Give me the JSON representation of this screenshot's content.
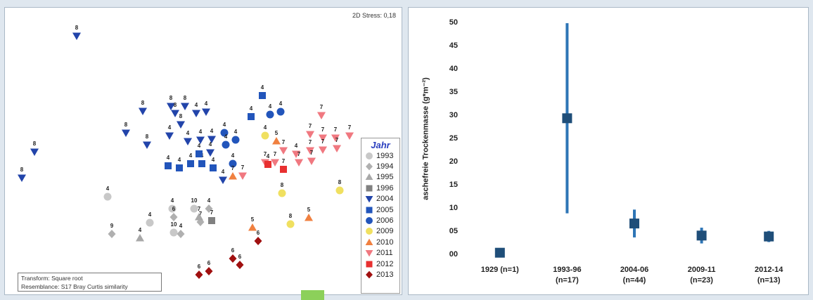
{
  "mds": {
    "stress_label": "2D Stress: 0,18",
    "transform_label": "Transform: Square root",
    "resemblance_label": "Resemblance: S17 Bray Curtis similarity",
    "legend_title": "Jahr",
    "legend": [
      {
        "year": "1993",
        "shape": "circle",
        "color": "#c8c8c8"
      },
      {
        "year": "1994",
        "shape": "diamond",
        "color": "#b0b0b0"
      },
      {
        "year": "1995",
        "shape": "triangle-up",
        "color": "#a8a8a8"
      },
      {
        "year": "1996",
        "shape": "square",
        "color": "#808080"
      },
      {
        "year": "2004",
        "shape": "triangle-down",
        "color": "#2244aa"
      },
      {
        "year": "2005",
        "shape": "square",
        "color": "#2255bb"
      },
      {
        "year": "2006",
        "shape": "circle",
        "color": "#2255bb"
      },
      {
        "year": "2009",
        "shape": "circle",
        "color": "#f0e060"
      },
      {
        "year": "2010",
        "shape": "triangle-up",
        "color": "#f08040"
      },
      {
        "year": "2011",
        "shape": "triangle-down",
        "color": "#f07880"
      },
      {
        "year": "2012",
        "shape": "square",
        "color": "#e83030"
      },
      {
        "year": "2013",
        "shape": "diamond",
        "color": "#a01010"
      }
    ],
    "points": [
      {
        "year": "2004",
        "x": 108,
        "y": 50,
        "label": "8"
      },
      {
        "year": "2004",
        "x": 48,
        "y": 215,
        "label": "8"
      },
      {
        "year": "2004",
        "x": 30,
        "y": 252,
        "label": "8"
      },
      {
        "year": "2004",
        "x": 178,
        "y": 188,
        "label": "8"
      },
      {
        "year": "2004",
        "x": 202,
        "y": 157,
        "label": "8"
      },
      {
        "year": "2004",
        "x": 208,
        "y": 205,
        "label": "8"
      },
      {
        "year": "2004",
        "x": 242,
        "y": 150,
        "label": "8"
      },
      {
        "year": "2004",
        "x": 248,
        "y": 160,
        "label": "8"
      },
      {
        "year": "2004",
        "x": 256,
        "y": 176,
        "label": "8"
      },
      {
        "year": "2004",
        "x": 262,
        "y": 150,
        "label": "8"
      },
      {
        "year": "2004",
        "x": 278,
        "y": 160,
        "label": "4"
      },
      {
        "year": "2004",
        "x": 292,
        "y": 158,
        "label": "4"
      },
      {
        "year": "2004",
        "x": 240,
        "y": 192,
        "label": "4"
      },
      {
        "year": "2004",
        "x": 266,
        "y": 200,
        "label": "4"
      },
      {
        "year": "2004",
        "x": 284,
        "y": 198,
        "label": "4"
      },
      {
        "year": "2004",
        "x": 300,
        "y": 197,
        "label": "4"
      },
      {
        "year": "2004",
        "x": 298,
        "y": 216,
        "label": "4"
      },
      {
        "year": "2004",
        "x": 316,
        "y": 255,
        "label": "4"
      },
      {
        "year": "2005",
        "x": 372,
        "y": 135,
        "label": "4"
      },
      {
        "year": "2005",
        "x": 356,
        "y": 165,
        "label": "4"
      },
      {
        "year": "2005",
        "x": 238,
        "y": 235,
        "label": "4"
      },
      {
        "year": "2005",
        "x": 254,
        "y": 238,
        "label": "4"
      },
      {
        "year": "2005",
        "x": 270,
        "y": 232,
        "label": "4"
      },
      {
        "year": "2005",
        "x": 286,
        "y": 232,
        "label": "4"
      },
      {
        "year": "2005",
        "x": 302,
        "y": 238,
        "label": "4"
      },
      {
        "year": "2005",
        "x": 282,
        "y": 218,
        "label": "4"
      },
      {
        "year": "2006",
        "x": 383,
        "y": 162,
        "label": "4"
      },
      {
        "year": "2006",
        "x": 398,
        "y": 158,
        "label": "4"
      },
      {
        "year": "2006",
        "x": 318,
        "y": 188,
        "label": "4"
      },
      {
        "year": "2006",
        "x": 334,
        "y": 198,
        "label": "4"
      },
      {
        "year": "2006",
        "x": 320,
        "y": 205,
        "label": "4"
      },
      {
        "year": "2006",
        "x": 330,
        "y": 232,
        "label": "4"
      },
      {
        "year": "1993",
        "x": 152,
        "y": 279,
        "label": "4"
      },
      {
        "year": "1993",
        "x": 212,
        "y": 316,
        "label": "4"
      },
      {
        "year": "1993",
        "x": 244,
        "y": 296,
        "label": "4"
      },
      {
        "year": "1993",
        "x": 275,
        "y": 296,
        "label": "10"
      },
      {
        "year": "1993",
        "x": 246,
        "y": 330,
        "label": "10"
      },
      {
        "year": "1994",
        "x": 158,
        "y": 332,
        "label": "9"
      },
      {
        "year": "1994",
        "x": 246,
        "y": 308,
        "label": "6"
      },
      {
        "year": "1994",
        "x": 256,
        "y": 332,
        "label": "4"
      },
      {
        "year": "1994",
        "x": 284,
        "y": 315,
        "label": "7"
      },
      {
        "year": "1994",
        "x": 296,
        "y": 296,
        "label": "4"
      },
      {
        "year": "1995",
        "x": 198,
        "y": 338,
        "label": "4"
      },
      {
        "year": "1995",
        "x": 282,
        "y": 308,
        "label": "7"
      },
      {
        "year": "1996",
        "x": 300,
        "y": 313,
        "label": "7"
      },
      {
        "year": "2009",
        "x": 376,
        "y": 192,
        "label": "4"
      },
      {
        "year": "2009",
        "x": 400,
        "y": 274,
        "label": "8"
      },
      {
        "year": "2009",
        "x": 482,
        "y": 270,
        "label": "8"
      },
      {
        "year": "2009",
        "x": 412,
        "y": 318,
        "label": "8"
      },
      {
        "year": "2010",
        "x": 392,
        "y": 200,
        "label": "5"
      },
      {
        "year": "2010",
        "x": 330,
        "y": 250,
        "label": "7"
      },
      {
        "year": "2010",
        "x": 358,
        "y": 323,
        "label": "5"
      },
      {
        "year": "2010",
        "x": 438,
        "y": 309,
        "label": "5"
      },
      {
        "year": "2011",
        "x": 456,
        "y": 163,
        "label": "7"
      },
      {
        "year": "2011",
        "x": 440,
        "y": 190,
        "label": "7"
      },
      {
        "year": "2011",
        "x": 458,
        "y": 195,
        "label": "7"
      },
      {
        "year": "2011",
        "x": 476,
        "y": 195,
        "label": "7"
      },
      {
        "year": "2011",
        "x": 496,
        "y": 192,
        "label": "7"
      },
      {
        "year": "2011",
        "x": 402,
        "y": 213,
        "label": "7"
      },
      {
        "year": "2011",
        "x": 420,
        "y": 218,
        "label": "4"
      },
      {
        "year": "2011",
        "x": 440,
        "y": 213,
        "label": "7"
      },
      {
        "year": "2011",
        "x": 458,
        "y": 212,
        "label": "7"
      },
      {
        "year": "2011",
        "x": 478,
        "y": 210,
        "label": "7"
      },
      {
        "year": "2011",
        "x": 376,
        "y": 230,
        "label": "7"
      },
      {
        "year": "2011",
        "x": 390,
        "y": 230,
        "label": "7"
      },
      {
        "year": "2011",
        "x": 424,
        "y": 230,
        "label": "7"
      },
      {
        "year": "2011",
        "x": 442,
        "y": 228,
        "label": "7"
      },
      {
        "year": "2011",
        "x": 344,
        "y": 249,
        "label": "7"
      },
      {
        "year": "2012",
        "x": 380,
        "y": 233,
        "label": "4"
      },
      {
        "year": "2012",
        "x": 402,
        "y": 240,
        "label": "7"
      },
      {
        "year": "2013",
        "x": 366,
        "y": 342,
        "label": "6"
      },
      {
        "year": "2013",
        "x": 330,
        "y": 367,
        "label": "6"
      },
      {
        "year": "2013",
        "x": 340,
        "y": 376,
        "label": "6"
      },
      {
        "year": "2013",
        "x": 282,
        "y": 390,
        "label": "6"
      },
      {
        "year": "2013",
        "x": 296,
        "y": 385,
        "label": "6"
      }
    ]
  },
  "chart_data": {
    "type": "errorbar",
    "ylabel": "aschefreie Trockenmasse (g*m⁻²)",
    "ylim": [
      0,
      50
    ],
    "yticks": [
      "00",
      "05",
      "10",
      "15",
      "20",
      "25",
      "30",
      "35",
      "40",
      "45",
      "50"
    ],
    "categories": [
      {
        "label_top": "1929 (n=1)",
        "label_bottom": "",
        "value": 0.5,
        "low": 0.5,
        "high": 0.5
      },
      {
        "label_top": "1993-96",
        "label_bottom": "(n=17)",
        "value": 29.5,
        "low": 9,
        "high": 50
      },
      {
        "label_top": "2004-06",
        "label_bottom": "(n=44)",
        "value": 6.8,
        "low": 3.8,
        "high": 9.8
      },
      {
        "label_top": "2009-11",
        "label_bottom": "(n=23)",
        "value": 4.2,
        "low": 2.5,
        "high": 5.9
      },
      {
        "label_top": "2012-14",
        "label_bottom": "(n=13)",
        "value": 4.0,
        "low": 2.8,
        "high": 5.2
      }
    ],
    "marker_color": "#1f4e79",
    "bar_color": "#2e75b6"
  }
}
